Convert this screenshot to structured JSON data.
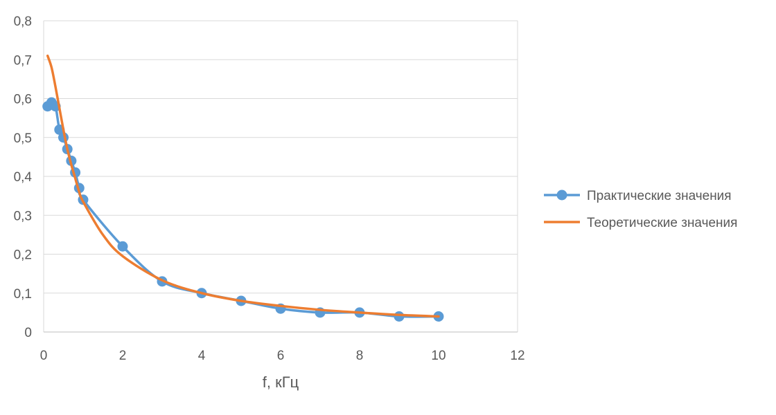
{
  "chart_data": {
    "type": "line",
    "title": "",
    "xlabel": "f, кГц",
    "ylabel": "",
    "xlim": [
      0,
      12
    ],
    "ylim": [
      0,
      0.8
    ],
    "x_ticks": [
      "0",
      "2",
      "4",
      "6",
      "8",
      "10",
      "12"
    ],
    "y_ticks": [
      "0",
      "0,1",
      "0,2",
      "0,3",
      "0,4",
      "0,5",
      "0,6",
      "0,7",
      "0,8"
    ],
    "grid": "horizontal",
    "legend_position": "right",
    "series": [
      {
        "name": "Практические значения",
        "color": "#5B9BD5",
        "markers": true,
        "x": [
          0.1,
          0.2,
          0.3,
          0.4,
          0.5,
          0.6,
          0.7,
          0.8,
          0.9,
          1,
          2,
          3,
          4,
          5,
          6,
          7,
          8,
          9,
          10
        ],
        "y": [
          0.58,
          0.59,
          0.58,
          0.52,
          0.5,
          0.47,
          0.44,
          0.41,
          0.37,
          0.34,
          0.22,
          0.13,
          0.1,
          0.08,
          0.06,
          0.05,
          0.05,
          0.04,
          0.04
        ]
      },
      {
        "name": "Теоретические значения",
        "color": "#ED7D31",
        "markers": false,
        "x": [
          0.1,
          0.2,
          0.3,
          0.4,
          0.5,
          0.6,
          0.7,
          0.8,
          0.9,
          1,
          1.5,
          2,
          3,
          4,
          5,
          6,
          7,
          8,
          9,
          10
        ],
        "y": [
          0.71,
          0.68,
          0.63,
          0.575,
          0.52,
          0.47,
          0.43,
          0.395,
          0.36,
          0.335,
          0.25,
          0.195,
          0.133,
          0.1,
          0.08,
          0.067,
          0.057,
          0.05,
          0.044,
          0.04
        ]
      }
    ]
  }
}
